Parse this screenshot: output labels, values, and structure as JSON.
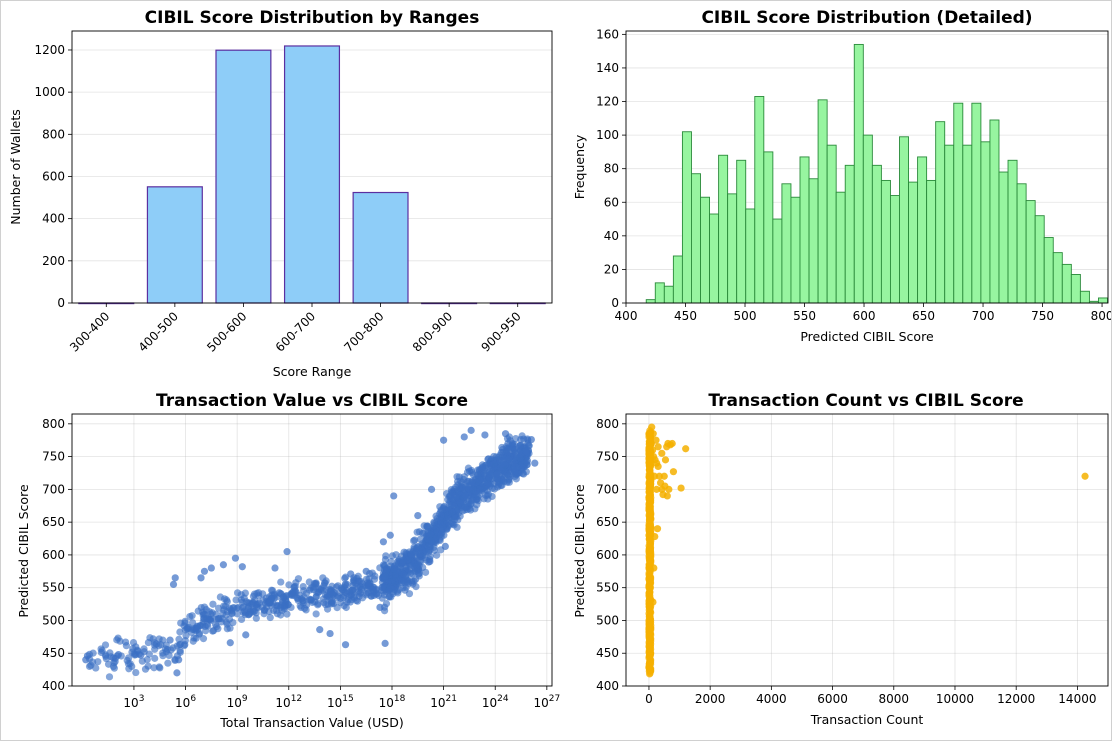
{
  "chart_data": [
    {
      "type": "bar",
      "title": "CIBIL Score Distribution by Ranges",
      "xlabel": "Score Range",
      "ylabel": "Number of Wallets",
      "categories": [
        "300-400",
        "400-500",
        "500-600",
        "600-700",
        "700-800",
        "800-900",
        "900-950"
      ],
      "values": [
        0,
        551,
        1199,
        1219,
        524,
        0,
        0
      ],
      "ylim": [
        0,
        1290
      ],
      "yticks": [
        0,
        200,
        400,
        600,
        800,
        1000,
        1200
      ],
      "bar_color": "#8ecdf8",
      "edge_color": "#5b2fa0",
      "grid": "y"
    },
    {
      "type": "bar",
      "title": "CIBIL Score Distribution (Detailed)",
      "xlabel": "Predicted CIBIL Score",
      "ylabel": "Frequency",
      "bin_start": 417,
      "bin_width": 7.6,
      "values": [
        2,
        12,
        10,
        28,
        102,
        77,
        63,
        53,
        88,
        65,
        85,
        56,
        123,
        90,
        50,
        71,
        63,
        87,
        74,
        121,
        94,
        66,
        82,
        154,
        100,
        82,
        73,
        64,
        99,
        72,
        87,
        73,
        108,
        94,
        119,
        94,
        119,
        96,
        109,
        78,
        85,
        71,
        61,
        52,
        39,
        30,
        23,
        17,
        7,
        1,
        3
      ],
      "xlim": [
        400,
        805
      ],
      "ylim": [
        0,
        162
      ],
      "xticks": [
        400,
        450,
        500,
        550,
        600,
        650,
        700,
        750,
        800
      ],
      "yticks": [
        0,
        20,
        40,
        60,
        80,
        100,
        120,
        140,
        160
      ],
      "bar_color": "#97f5a0",
      "edge_color": "#2a8a3a",
      "grid": "y"
    },
    {
      "type": "scatter",
      "title": "Transaction Value vs CIBIL Score",
      "xlabel": "Total Transaction Value (USD)",
      "ylabel": "Predicted CIBIL Score",
      "x_scale": "log",
      "xlim_exp": [
        -0.6,
        27.3
      ],
      "ylim": [
        400,
        815
      ],
      "xtick_exponents": [
        3,
        6,
        9,
        12,
        15,
        18,
        21,
        24,
        27
      ],
      "yticks": [
        400,
        450,
        500,
        550,
        600,
        650,
        700,
        750,
        800
      ],
      "color": "#3a6fc4",
      "grid": "both",
      "trend_points_log10x_y": [
        [
          0.9,
          443
        ],
        [
          2.2,
          446
        ],
        [
          3.5,
          449
        ],
        [
          4.5,
          452
        ],
        [
          5.2,
          455
        ],
        [
          5.8,
          470
        ],
        [
          6.2,
          482
        ],
        [
          6.8,
          495
        ],
        [
          7.6,
          506
        ],
        [
          8.5,
          514
        ],
        [
          9.4,
          521
        ],
        [
          10.4,
          526
        ],
        [
          11.5,
          531
        ],
        [
          12.6,
          536
        ],
        [
          13.6,
          538
        ],
        [
          14.6,
          540
        ],
        [
          15.6,
          545
        ],
        [
          16.5,
          550
        ],
        [
          17.4,
          556
        ],
        [
          18.2,
          566
        ],
        [
          19.0,
          582
        ],
        [
          19.7,
          603
        ],
        [
          20.3,
          628
        ],
        [
          20.9,
          652
        ],
        [
          21.5,
          672
        ],
        [
          22.2,
          690
        ],
        [
          22.9,
          707
        ],
        [
          23.6,
          720
        ],
        [
          24.3,
          732
        ],
        [
          25.0,
          742
        ],
        [
          25.8,
          750
        ]
      ],
      "outliers_log10x_y": [
        [
          0.2,
          440
        ],
        [
          0.3,
          446
        ],
        [
          1.8,
          443
        ],
        [
          2.1,
          448
        ],
        [
          3.4,
          447
        ],
        [
          5.1,
          470
        ],
        [
          5.3,
          555
        ],
        [
          5.4,
          565
        ],
        [
          5.5,
          420
        ],
        [
          5.6,
          440
        ],
        [
          6.9,
          565
        ],
        [
          7.1,
          575
        ],
        [
          7.5,
          580
        ],
        [
          8.2,
          585
        ],
        [
          8.9,
          595
        ],
        [
          9.3,
          582
        ],
        [
          11.2,
          580
        ],
        [
          11.9,
          605
        ],
        [
          9.5,
          478
        ],
        [
          8.6,
          466
        ],
        [
          13.8,
          486
        ],
        [
          14.4,
          480
        ],
        [
          15.3,
          463
        ],
        [
          15.6,
          571
        ],
        [
          16.1,
          560
        ],
        [
          16.5,
          575
        ],
        [
          17.3,
          520
        ],
        [
          17.6,
          465
        ],
        [
          17.5,
          620
        ],
        [
          17.9,
          630
        ],
        [
          18.1,
          690
        ],
        [
          19.5,
          660
        ],
        [
          20.3,
          700
        ],
        [
          21.0,
          775
        ],
        [
          22.2,
          780
        ],
        [
          22.6,
          790
        ],
        [
          23.4,
          783
        ],
        [
          24.6,
          785
        ],
        [
          25.0,
          770
        ],
        [
          26.1,
          776
        ],
        [
          26.3,
          740
        ],
        [
          25.8,
          758
        ],
        [
          21.1,
          613
        ],
        [
          20.2,
          590
        ]
      ]
    },
    {
      "type": "scatter",
      "title": "Transaction Count vs CIBIL Score",
      "xlabel": "Transaction Count",
      "ylabel": "Predicted CIBIL Score",
      "xlim": [
        -750,
        15000
      ],
      "ylim": [
        400,
        815
      ],
      "xticks": [
        0,
        2000,
        4000,
        6000,
        8000,
        10000,
        12000,
        14000
      ],
      "yticks": [
        400,
        450,
        500,
        550,
        600,
        650,
        700,
        750,
        800
      ],
      "color": "#f5b000",
      "grid": "both",
      "column_x_max": 60,
      "column_y_range": [
        418,
        790
      ],
      "spread_points_x_y": [
        [
          80,
          770
        ],
        [
          120,
          760
        ],
        [
          150,
          750
        ],
        [
          200,
          745
        ],
        [
          250,
          740
        ],
        [
          300,
          735
        ],
        [
          340,
          720
        ],
        [
          380,
          710
        ],
        [
          420,
          700
        ],
        [
          460,
          692
        ],
        [
          500,
          720
        ],
        [
          540,
          745
        ],
        [
          580,
          765
        ],
        [
          620,
          770
        ],
        [
          700,
          768
        ],
        [
          760,
          770
        ],
        [
          650,
          700
        ],
        [
          600,
          690
        ],
        [
          520,
          705
        ],
        [
          90,
          795
        ],
        [
          140,
          785
        ],
        [
          230,
          775
        ],
        [
          300,
          765
        ],
        [
          420,
          755
        ],
        [
          1200,
          762
        ],
        [
          1050,
          702
        ],
        [
          800,
          727
        ],
        [
          190,
          628
        ],
        [
          160,
          580
        ],
        [
          130,
          528
        ],
        [
          280,
          640
        ],
        [
          250,
          700
        ],
        [
          180,
          720
        ]
      ],
      "outliers_x_y": [
        [
          14250,
          720
        ]
      ]
    }
  ]
}
